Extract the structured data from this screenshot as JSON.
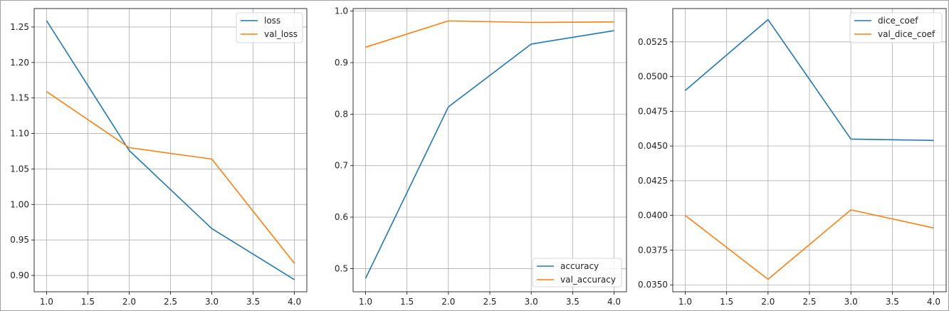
{
  "chart_data": [
    {
      "type": "line",
      "x": [
        1.0,
        2.0,
        3.0,
        4.0
      ],
      "xlim": [
        0.85,
        4.15
      ],
      "ylim": [
        0.877,
        1.276
      ],
      "xticks": [
        1.0,
        1.5,
        2.0,
        2.5,
        3.0,
        3.5,
        4.0
      ],
      "xtick_labels": [
        "1.0",
        "1.5",
        "2.0",
        "2.5",
        "3.0",
        "3.5",
        "4.0"
      ],
      "yticks": [
        0.9,
        0.95,
        1.0,
        1.05,
        1.1,
        1.15,
        1.2,
        1.25
      ],
      "ytick_labels": [
        "0.90",
        "0.95",
        "1.00",
        "1.05",
        "1.10",
        "1.15",
        "1.20",
        "1.25"
      ],
      "grid": true,
      "legend_position": "top-right",
      "series": [
        {
          "name": "loss",
          "color": "#1f77b4",
          "values": [
            1.259,
            1.076,
            0.966,
            0.894
          ]
        },
        {
          "name": "val_loss",
          "color": "#ff7f0e",
          "values": [
            1.159,
            1.08,
            1.064,
            0.917
          ]
        }
      ]
    },
    {
      "type": "line",
      "x": [
        1.0,
        2.0,
        3.0,
        4.0
      ],
      "xlim": [
        0.85,
        4.15
      ],
      "ylim": [
        0.455,
        1.005
      ],
      "xticks": [
        1.0,
        1.5,
        2.0,
        2.5,
        3.0,
        3.5,
        4.0
      ],
      "xtick_labels": [
        "1.0",
        "1.5",
        "2.0",
        "2.5",
        "3.0",
        "3.5",
        "4.0"
      ],
      "yticks": [
        0.5,
        0.6,
        0.7,
        0.8,
        0.9,
        1.0
      ],
      "ytick_labels": [
        "0.5",
        "0.6",
        "0.7",
        "0.8",
        "0.9",
        "1.0"
      ],
      "grid": true,
      "legend_position": "bottom-right",
      "series": [
        {
          "name": "accuracy",
          "color": "#1f77b4",
          "values": [
            0.481,
            0.814,
            0.936,
            0.962
          ]
        },
        {
          "name": "val_accuracy",
          "color": "#ff7f0e",
          "values": [
            0.93,
            0.981,
            0.978,
            0.979
          ]
        }
      ]
    },
    {
      "type": "line",
      "x": [
        1.0,
        2.0,
        3.0,
        4.0
      ],
      "xlim": [
        0.85,
        4.15
      ],
      "ylim": [
        0.0345,
        0.0549
      ],
      "xticks": [
        1.0,
        1.5,
        2.0,
        2.5,
        3.0,
        3.5,
        4.0
      ],
      "xtick_labels": [
        "1.0",
        "1.5",
        "2.0",
        "2.5",
        "3.0",
        "3.5",
        "4.0"
      ],
      "yticks": [
        0.035,
        0.0375,
        0.04,
        0.0425,
        0.045,
        0.0475,
        0.05,
        0.0525
      ],
      "ytick_labels": [
        "0.0350",
        "0.0375",
        "0.0400",
        "0.0425",
        "0.0450",
        "0.0475",
        "0.0500",
        "0.0525"
      ],
      "grid": true,
      "legend_position": "top-right",
      "series": [
        {
          "name": "dice_coef",
          "color": "#1f77b4",
          "values": [
            0.049,
            0.0541,
            0.0455,
            0.0454
          ]
        },
        {
          "name": "val_dice_coef",
          "color": "#ff7f0e",
          "values": [
            0.04,
            0.0354,
            0.0404,
            0.0391
          ]
        }
      ]
    }
  ]
}
